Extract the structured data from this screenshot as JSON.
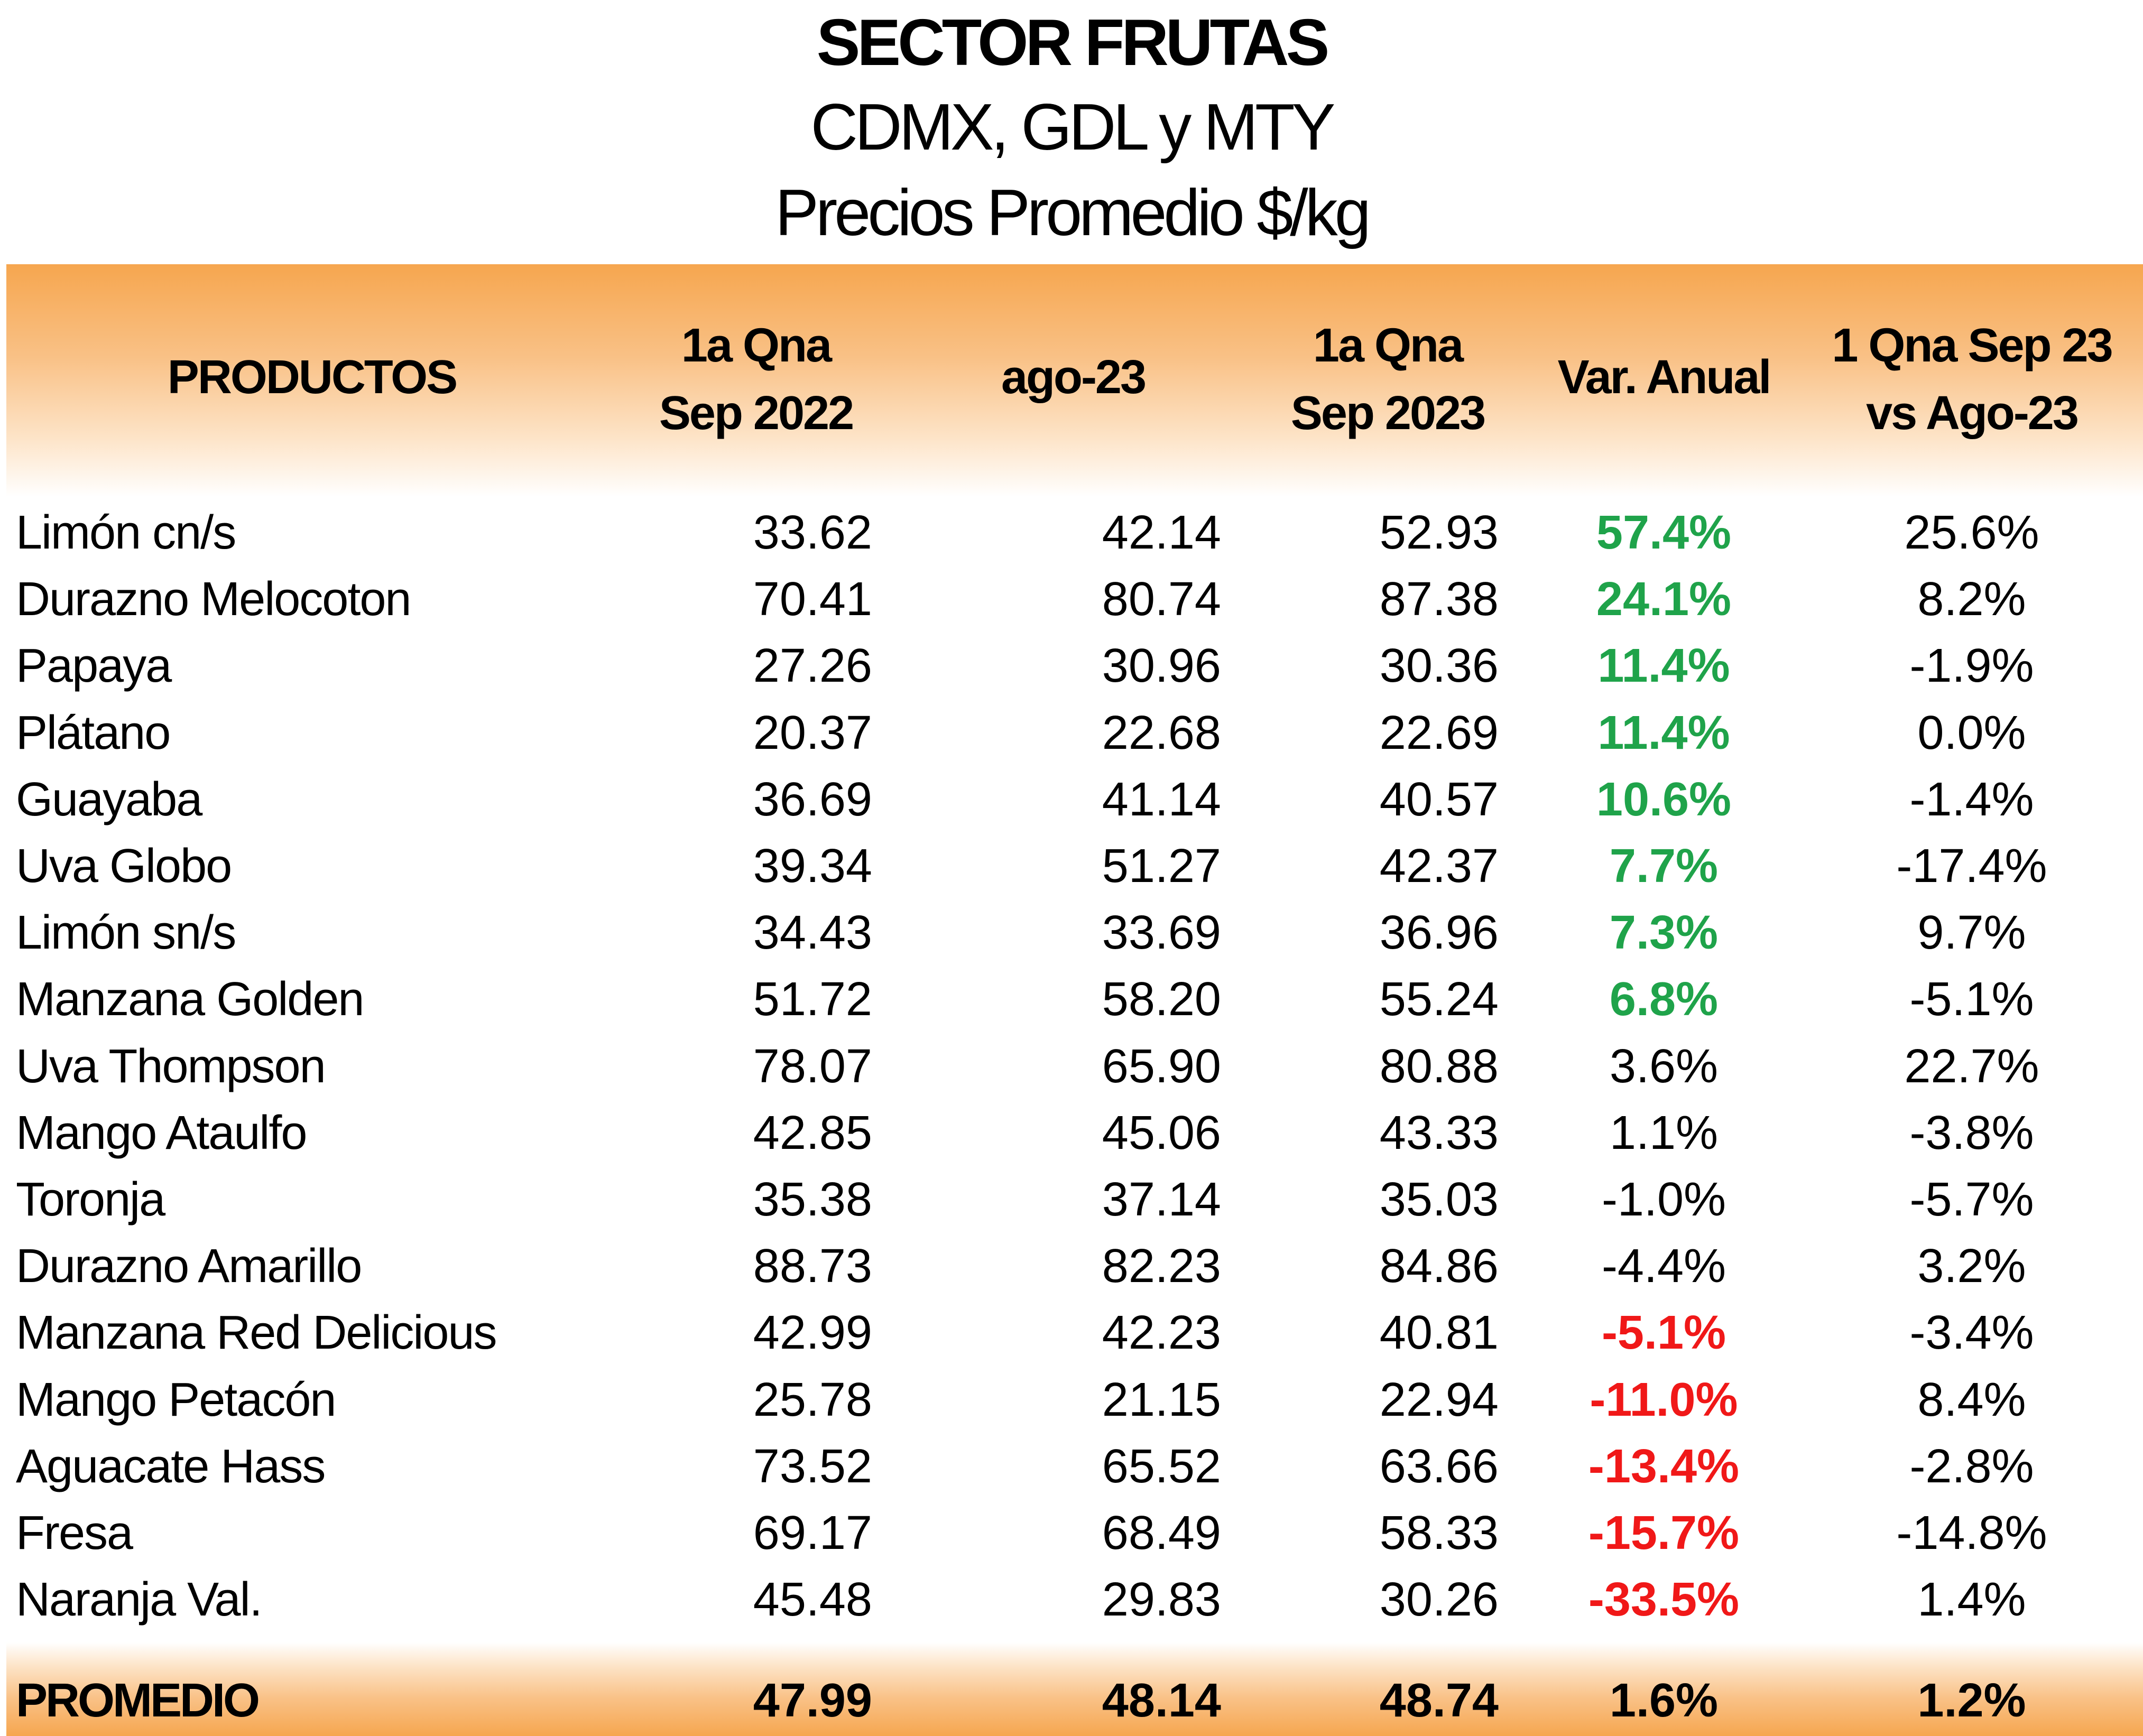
{
  "title": {
    "line1": "SECTOR FRUTAS",
    "line2": "CDMX, GDL y MTY",
    "line3": "Precios Promedio $/kg"
  },
  "header": {
    "productos": "PRODUCTOS",
    "col_a": [
      "1a Qna",
      "Sep 2022"
    ],
    "col_b": "ago-23",
    "col_c": [
      "1a Qna",
      "Sep 2023"
    ],
    "col_d": "Var. Anual",
    "col_e": [
      "1 Qna Sep 23",
      "vs Ago-23"
    ]
  },
  "rows": [
    {
      "name": "Limón cn/s",
      "a": "33.62",
      "b": "42.14",
      "c": "52.93",
      "var": "57.4%",
      "var_style": "pos",
      "mom": "25.6%"
    },
    {
      "name": "Durazno Melocoton",
      "a": "70.41",
      "b": "80.74",
      "c": "87.38",
      "var": "24.1%",
      "var_style": "pos",
      "mom": "8.2%"
    },
    {
      "name": "Papaya",
      "a": "27.26",
      "b": "30.96",
      "c": "30.36",
      "var": "11.4%",
      "var_style": "pos",
      "mom": "-1.9%"
    },
    {
      "name": "Plátano",
      "a": "20.37",
      "b": "22.68",
      "c": "22.69",
      "var": "11.4%",
      "var_style": "pos",
      "mom": "0.0%"
    },
    {
      "name": "Guayaba",
      "a": "36.69",
      "b": "41.14",
      "c": "40.57",
      "var": "10.6%",
      "var_style": "pos",
      "mom": "-1.4%"
    },
    {
      "name": "Uva Globo",
      "a": "39.34",
      "b": "51.27",
      "c": "42.37",
      "var": "7.7%",
      "var_style": "pos",
      "mom": "-17.4%"
    },
    {
      "name": "Limón sn/s",
      "a": "34.43",
      "b": "33.69",
      "c": "36.96",
      "var": "7.3%",
      "var_style": "pos",
      "mom": "9.7%"
    },
    {
      "name": "Manzana Golden",
      "a": "51.72",
      "b": "58.20",
      "c": "55.24",
      "var": "6.8%",
      "var_style": "pos",
      "mom": "-5.1%"
    },
    {
      "name": "Uva Thompson",
      "a": "78.07",
      "b": "65.90",
      "c": "80.88",
      "var": "3.6%",
      "var_style": "plain",
      "mom": "22.7%"
    },
    {
      "name": "Mango Ataulfo",
      "a": "42.85",
      "b": "45.06",
      "c": "43.33",
      "var": "1.1%",
      "var_style": "plain",
      "mom": "-3.8%"
    },
    {
      "name": "Toronja",
      "a": "35.38",
      "b": "37.14",
      "c": "35.03",
      "var": "-1.0%",
      "var_style": "plain",
      "mom": "-5.7%"
    },
    {
      "name": "Durazno Amarillo",
      "a": "88.73",
      "b": "82.23",
      "c": "84.86",
      "var": "-4.4%",
      "var_style": "plain",
      "mom": "3.2%"
    },
    {
      "name": "Manzana Red Delicious",
      "a": "42.99",
      "b": "42.23",
      "c": "40.81",
      "var": "-5.1%",
      "var_style": "neg",
      "mom": "-3.4%"
    },
    {
      "name": "Mango Petacón",
      "a": "25.78",
      "b": "21.15",
      "c": "22.94",
      "var": "-11.0%",
      "var_style": "neg",
      "mom": "8.4%"
    },
    {
      "name": "Aguacate Hass",
      "a": "73.52",
      "b": "65.52",
      "c": "63.66",
      "var": "-13.4%",
      "var_style": "neg",
      "mom": "-2.8%"
    },
    {
      "name": "Fresa",
      "a": "69.17",
      "b": "68.49",
      "c": "58.33",
      "var": "-15.7%",
      "var_style": "neg",
      "mom": "-14.8%"
    },
    {
      "name": "Naranja Val.",
      "a": "45.48",
      "b": "29.83",
      "c": "30.26",
      "var": "-33.5%",
      "var_style": "neg",
      "mom": "1.4%"
    }
  ],
  "footer": {
    "label": "PROMEDIO",
    "a": "47.99",
    "b": "48.14",
    "c": "48.74",
    "var": "1.6%",
    "mom": "1.2%"
  },
  "colors": {
    "positive": "#1fa34a",
    "negative": "#f01818",
    "band": "#f6a64f"
  }
}
